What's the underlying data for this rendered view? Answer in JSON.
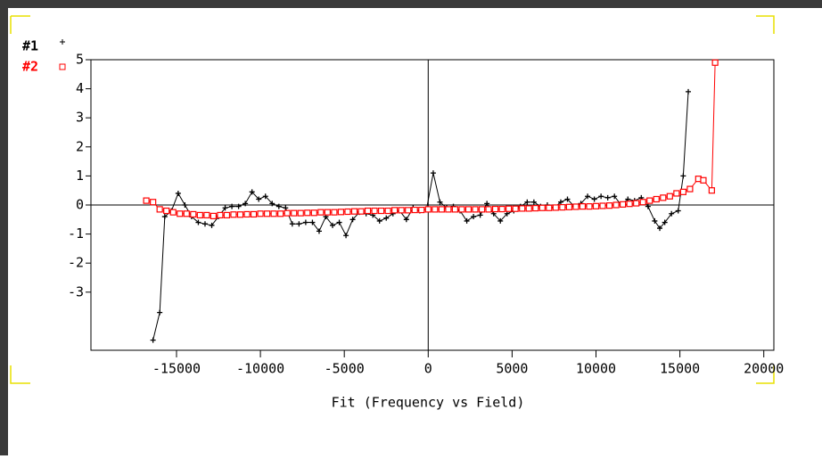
{
  "chart_data": {
    "type": "line",
    "title": "Fit (Frequency vs Field)",
    "xlim": [
      -20100,
      20600
    ],
    "xticks": [
      -15000,
      -10000,
      -5000,
      0,
      5000,
      10000,
      15000,
      20000
    ],
    "ylim": [
      -5,
      5
    ],
    "yticks": [
      -3,
      -2,
      -1,
      0,
      1,
      2,
      3,
      4,
      5
    ],
    "series": [
      {
        "name": "#1",
        "color": "#000000",
        "marker": "plus",
        "x": [
          -16400,
          -16000,
          -15700,
          -15300,
          -14900,
          -14500,
          -14100,
          -13700,
          -13300,
          -12900,
          -12500,
          -12100,
          -11700,
          -11300,
          -10900,
          -10500,
          -10100,
          -9700,
          -9300,
          -8900,
          -8500,
          -8100,
          -7700,
          -7300,
          -6900,
          -6500,
          -6100,
          -5700,
          -5300,
          -4900,
          -4500,
          -4100,
          -3700,
          -3300,
          -2900,
          -2500,
          -2100,
          -1700,
          -1300,
          -900,
          -500,
          -100,
          300,
          700,
          1100,
          1500,
          1900,
          2300,
          2700,
          3100,
          3500,
          3900,
          4300,
          4700,
          5100,
          5500,
          5900,
          6300,
          6700,
          7100,
          7500,
          7900,
          8300,
          8700,
          9100,
          9500,
          9900,
          10300,
          10700,
          11100,
          11500,
          11900,
          12300,
          12700,
          13100,
          13500,
          13800,
          14100,
          14500,
          14900,
          15200,
          15500
        ],
        "values": [
          -4.65,
          -3.7,
          -0.4,
          -0.2,
          0.4,
          0,
          -0.4,
          -0.6,
          -0.65,
          -0.7,
          -0.4,
          -0.1,
          -0.05,
          -0.05,
          0.05,
          0.45,
          0.2,
          0.3,
          0.05,
          -0.05,
          -0.1,
          -0.65,
          -0.65,
          -0.6,
          -0.6,
          -0.9,
          -0.4,
          -0.7,
          -0.6,
          -1.05,
          -0.5,
          -0.25,
          -0.3,
          -0.35,
          -0.55,
          -0.45,
          -0.3,
          -0.2,
          -0.5,
          -0.1,
          -0.2,
          -0.15,
          1.1,
          0.1,
          -0.1,
          -0.05,
          -0.2,
          -0.55,
          -0.4,
          -0.35,
          0.05,
          -0.3,
          -0.55,
          -0.3,
          -0.2,
          -0.05,
          0.1,
          0.1,
          -0.05,
          0,
          -0.1,
          0.1,
          0.2,
          -0.05,
          0.05,
          0.3,
          0.2,
          0.3,
          0.25,
          0.3,
          0,
          0.2,
          0.15,
          0.25,
          -0.05,
          -0.55,
          -0.8,
          -0.6,
          -0.3,
          -0.2,
          1,
          3.9
        ]
      },
      {
        "name": "#2",
        "color": "#ff0000",
        "marker": "square",
        "x": [
          -16800,
          -16400,
          -16000,
          -15600,
          -15200,
          -14800,
          -14400,
          -14000,
          -13600,
          -13200,
          -12800,
          -12400,
          -12000,
          -11600,
          -11200,
          -10800,
          -10400,
          -10000,
          -9600,
          -9200,
          -8800,
          -8400,
          -8000,
          -7600,
          -7200,
          -6800,
          -6400,
          -6000,
          -5600,
          -5200,
          -4800,
          -4400,
          -4000,
          -3600,
          -3200,
          -2800,
          -2400,
          -2000,
          -1600,
          -1200,
          -800,
          -400,
          0,
          400,
          800,
          1200,
          1600,
          2000,
          2400,
          2800,
          3200,
          3600,
          4000,
          4400,
          4800,
          5200,
          5600,
          6000,
          6400,
          6800,
          7200,
          7600,
          8000,
          8400,
          8800,
          9200,
          9600,
          10000,
          10400,
          10800,
          11200,
          11600,
          12000,
          12400,
          12800,
          13200,
          13600,
          14000,
          14400,
          14800,
          15200,
          15600,
          16100,
          16400,
          16900,
          17100
        ],
        "values": [
          0.15,
          0.1,
          -0.15,
          -0.2,
          -0.25,
          -0.3,
          -0.3,
          -0.32,
          -0.35,
          -0.35,
          -0.38,
          -0.35,
          -0.35,
          -0.33,
          -0.33,
          -0.32,
          -0.32,
          -0.3,
          -0.3,
          -0.3,
          -0.3,
          -0.28,
          -0.28,
          -0.28,
          -0.27,
          -0.27,
          -0.25,
          -0.25,
          -0.25,
          -0.24,
          -0.23,
          -0.22,
          -0.22,
          -0.2,
          -0.2,
          -0.2,
          -0.2,
          -0.18,
          -0.18,
          -0.18,
          -0.17,
          -0.17,
          -0.15,
          -0.15,
          -0.15,
          -0.15,
          -0.15,
          -0.15,
          -0.15,
          -0.15,
          -0.15,
          -0.15,
          -0.14,
          -0.14,
          -0.13,
          -0.13,
          -0.12,
          -0.12,
          -0.11,
          -0.1,
          -0.1,
          -0.09,
          -0.08,
          -0.07,
          -0.06,
          -0.05,
          -0.05,
          -0.04,
          -0.03,
          -0.02,
          0,
          0.02,
          0.04,
          0.06,
          0.1,
          0.15,
          0.2,
          0.25,
          0.3,
          0.4,
          0.45,
          0.55,
          0.9,
          0.85,
          0.5,
          4.9
        ]
      }
    ]
  }
}
